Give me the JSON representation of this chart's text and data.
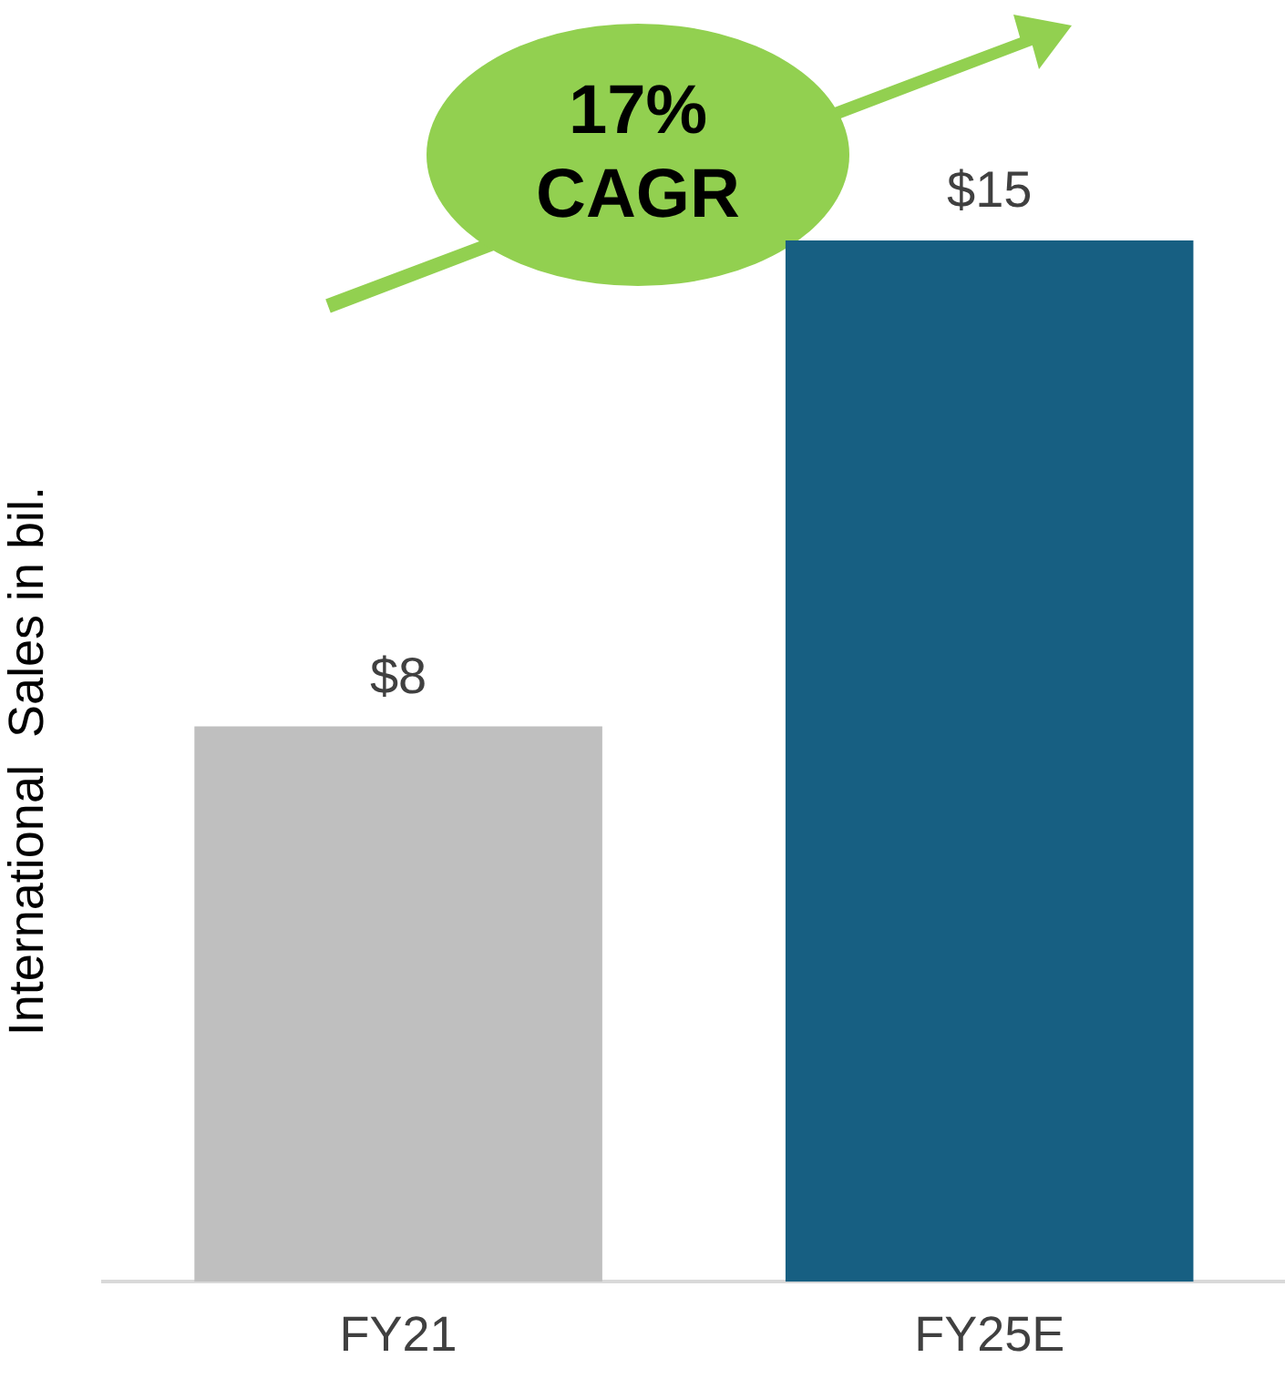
{
  "chart_data": {
    "type": "bar",
    "ylabel": "International  Sales in bil.",
    "categories": [
      "FY21",
      "FY25E"
    ],
    "values": [
      8,
      15
    ],
    "colors": [
      "#bfbfbf",
      "#175f82"
    ],
    "value_labels": [
      "$8",
      "$15"
    ],
    "annotations": [
      "17% CAGR"
    ],
    "grid": false,
    "legend": false
  }
}
